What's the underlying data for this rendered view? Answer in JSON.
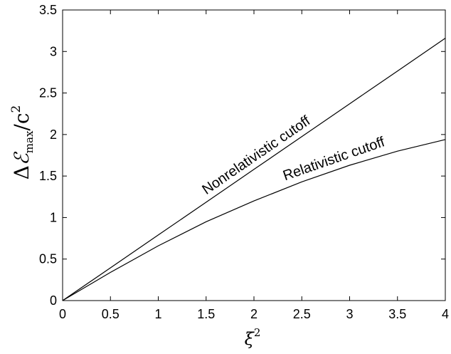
{
  "chart_data": {
    "type": "line",
    "title": "",
    "xlabel": "ξ²",
    "ylabel": "ΔℰΔ",
    "ylabel_parts": {
      "delta": "Δ",
      "symbol": "ℰ",
      "sub": "max",
      "slash": "/",
      "c": "c",
      "sup": "2"
    },
    "xlabel_parts": {
      "base": "ξ",
      "sup": "2"
    },
    "xlim": [
      0,
      4
    ],
    "ylim": [
      0,
      3.5
    ],
    "x_ticks": [
      "0",
      "0.5",
      "1",
      "1.5",
      "2",
      "2.5",
      "3",
      "3.5",
      "4"
    ],
    "y_ticks": [
      "0",
      "0.5",
      "1",
      "1.5",
      "2",
      "2.5",
      "3",
      "3.5"
    ],
    "grid": false,
    "series": [
      {
        "name": "Nonrelativistic cutoff",
        "color": "#000000",
        "x": [
          0,
          0.5,
          1,
          1.5,
          2,
          2.5,
          3,
          3.5,
          4
        ],
        "y": [
          0,
          0.395,
          0.79,
          1.185,
          1.58,
          1.975,
          2.37,
          2.765,
          3.16
        ]
      },
      {
        "name": "Relativistic cutoff",
        "color": "#000000",
        "x": [
          0,
          0.5,
          1,
          1.5,
          2,
          2.5,
          3,
          3.5,
          4
        ],
        "y": [
          0,
          0.34,
          0.66,
          0.95,
          1.2,
          1.43,
          1.63,
          1.8,
          1.94
        ]
      }
    ],
    "annotations": [
      {
        "text": "Nonrelativistic cutoff",
        "series": 0
      },
      {
        "text": "Relativistic cutoff",
        "series": 1
      }
    ]
  }
}
